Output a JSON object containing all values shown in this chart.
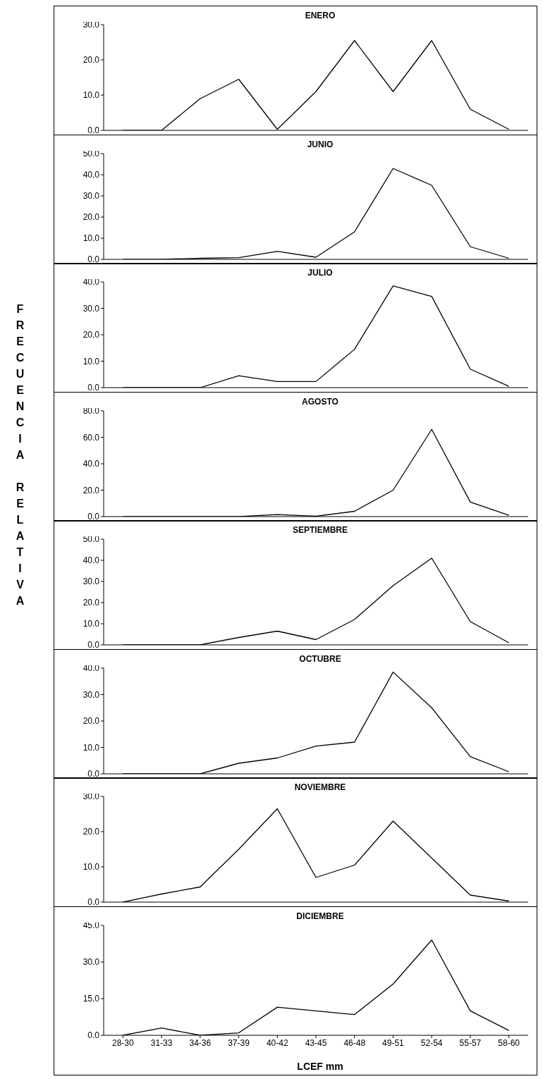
{
  "chart_data": [
    {
      "type": "line",
      "title": "ENERO",
      "categories": [
        null,
        null,
        null,
        null,
        null,
        null,
        null,
        null,
        null,
        null,
        null
      ],
      "values": [
        0,
        0,
        9,
        14.5,
        0.3,
        11,
        25.5,
        11,
        25.5,
        6,
        0.3
      ],
      "color": "#000000",
      "marker": "none",
      "ylim": [
        0,
        30
      ],
      "yticks": [
        {
          "value": 0,
          "label": "0.0"
        },
        {
          "value": 10,
          "label": "10.0"
        },
        {
          "value": 20,
          "label": "20.0"
        },
        {
          "value": 30,
          "label": "30.0"
        }
      ],
      "tick_labels": "y"
    },
    {
      "type": "line",
      "title": "JUNIO",
      "categories": [
        null,
        null,
        null,
        null,
        null,
        null,
        null,
        null,
        null,
        null,
        null
      ],
      "values": [
        0,
        0,
        0.5,
        0.8,
        3.8,
        1,
        13,
        43,
        35,
        6,
        0.5
      ],
      "color": "#000000",
      "marker": "none",
      "ylim": [
        0,
        50
      ],
      "yticks": [
        {
          "value": 0,
          "label": "0.0"
        },
        {
          "value": 10,
          "label": "10.0"
        },
        {
          "value": 20,
          "label": "20.0"
        },
        {
          "value": 30,
          "label": "30.0"
        },
        {
          "value": 40,
          "label": "40.0"
        },
        {
          "value": 50,
          "label": "50.0"
        }
      ],
      "tick_labels": "y"
    },
    {
      "type": "line",
      "title": "JULIO",
      "categories": [
        null,
        null,
        null,
        null,
        null,
        null,
        null,
        null,
        null,
        null,
        null
      ],
      "values": [
        0,
        0,
        0,
        4.5,
        2.3,
        2.3,
        14.5,
        38.5,
        34.5,
        7,
        0.5
      ],
      "color": "#000000",
      "marker": "none",
      "ylim": [
        0,
        40
      ],
      "yticks": [
        {
          "value": 0,
          "label": "0.0"
        },
        {
          "value": 10,
          "label": "10.0"
        },
        {
          "value": 20,
          "label": "20.0"
        },
        {
          "value": 30,
          "label": "30.0"
        },
        {
          "value": 40,
          "label": "40.0"
        }
      ],
      "tick_labels": "y"
    },
    {
      "type": "line",
      "title": "AGOSTO",
      "ylabel": "FRECUENCIA RELATIVA",
      "categories": [
        null,
        null,
        null,
        null,
        null,
        null,
        null,
        null,
        null,
        null,
        null
      ],
      "values": [
        0,
        0,
        0,
        0,
        1.5,
        0.3,
        4,
        20,
        66,
        11,
        1
      ],
      "color": "#000000",
      "marker": "none",
      "ylim": [
        0,
        80
      ],
      "yticks": [
        {
          "value": 0,
          "label": "0.0"
        },
        {
          "value": 20,
          "label": "20.0"
        },
        {
          "value": 40,
          "label": "40.0"
        },
        {
          "value": 60,
          "label": "60.0"
        },
        {
          "value": 80,
          "label": "80.0"
        }
      ],
      "tick_labels": "y"
    },
    {
      "type": "line",
      "title": "SEPTIEMBRE",
      "categories": [
        null,
        null,
        null,
        null,
        null,
        null,
        null,
        null,
        null,
        null,
        null
      ],
      "values": [
        0,
        0,
        0,
        3.5,
        6.5,
        2.5,
        12,
        28,
        41,
        11,
        1
      ],
      "color": "#000000",
      "marker": "none",
      "ylim": [
        0,
        50
      ],
      "yticks": [
        {
          "value": 0,
          "label": "0.0"
        },
        {
          "value": 10,
          "label": "10.0"
        },
        {
          "value": 20,
          "label": "20.0"
        },
        {
          "value": 30,
          "label": "30.0"
        },
        {
          "value": 40,
          "label": "40.0"
        },
        {
          "value": 50,
          "label": "50.0"
        }
      ],
      "tick_labels": "y"
    },
    {
      "type": "line",
      "title": "OCTUBRE",
      "categories": [
        null,
        null,
        null,
        null,
        null,
        null,
        null,
        null,
        null,
        null,
        null
      ],
      "values": [
        0,
        0,
        0,
        4,
        6,
        10.5,
        12,
        38.5,
        25,
        6.5,
        0.8
      ],
      "color": "#000000",
      "marker": "none",
      "ylim": [
        0,
        40
      ],
      "yticks": [
        {
          "value": 0,
          "label": "0.0"
        },
        {
          "value": 10,
          "label": "10.0"
        },
        {
          "value": 20,
          "label": "20.0"
        },
        {
          "value": 30,
          "label": "30.0"
        },
        {
          "value": 40,
          "label": "40.0"
        }
      ],
      "tick_labels": "y"
    },
    {
      "type": "line",
      "title": "NOVIEMBRE",
      "categories": [
        null,
        null,
        null,
        null,
        null,
        null,
        null,
        null,
        null,
        null,
        null
      ],
      "values": [
        0,
        2.3,
        4.3,
        15,
        26.5,
        7,
        10.5,
        23,
        12.5,
        2,
        0.3
      ],
      "color": "#000000",
      "marker": "none",
      "ylim": [
        0,
        30
      ],
      "yticks": [
        {
          "value": 0,
          "label": "0.0"
        },
        {
          "value": 10,
          "label": "10.0"
        },
        {
          "value": 20,
          "label": "20.0"
        },
        {
          "value": 30,
          "label": "30.0"
        }
      ],
      "tick_labels": "y"
    },
    {
      "type": "line",
      "title": "DICIEMBRE",
      "xlabel": "LCEF mm",
      "categories": [
        "28-30",
        "31-33",
        "34-36",
        "37-39",
        "40-42",
        "43-45",
        "46-48",
        "49-51",
        "52-54",
        "55-57",
        "58-60"
      ],
      "values": [
        0,
        3,
        0,
        1,
        11.5,
        10,
        8.5,
        21,
        39,
        10,
        2
      ],
      "color": "#000000",
      "marker": "none",
      "ylim": [
        0,
        45
      ],
      "yticks": [
        {
          "value": 0,
          "label": "0.0"
        },
        {
          "value": 15,
          "label": "15.0"
        },
        {
          "value": 30,
          "label": "30.0"
        },
        {
          "value": 45,
          "label": "45.0"
        }
      ]
    }
  ]
}
